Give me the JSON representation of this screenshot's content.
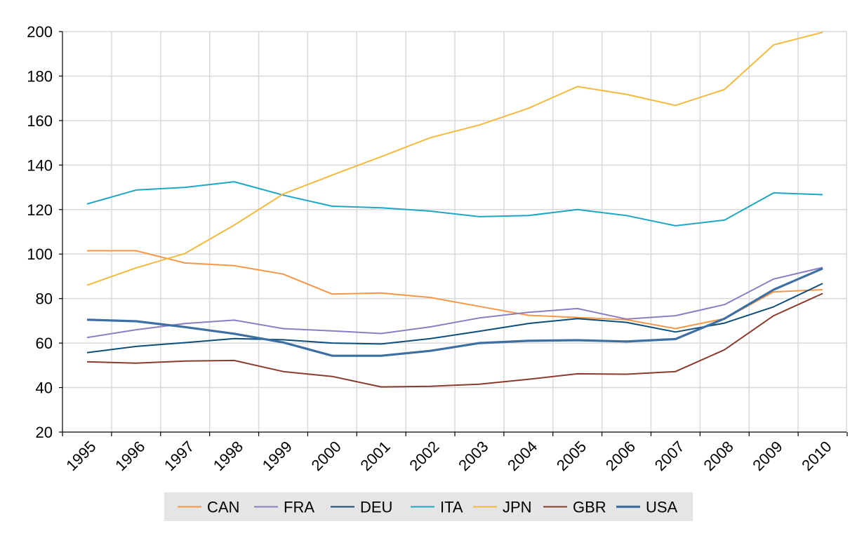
{
  "chart_data": {
    "type": "line",
    "title": "",
    "xlabel": "",
    "ylabel": "",
    "x": [
      "1995",
      "1996",
      "1997",
      "1998",
      "1999",
      "2000",
      "2001",
      "2002",
      "2003",
      "2004",
      "2005",
      "2006",
      "2007",
      "2008",
      "2009",
      "2010"
    ],
    "ylim": [
      20,
      200
    ],
    "yticks": [
      20,
      40,
      60,
      80,
      100,
      120,
      140,
      160,
      180,
      200
    ],
    "grid": true,
    "legend_position": "bottom",
    "series": [
      {
        "name": "CAN",
        "color": "#F79646",
        "values": [
          101.5,
          101.5,
          96.0,
          94.8,
          91.0,
          82.0,
          82.5,
          80.5,
          76.5,
          72.5,
          71.5,
          70.5,
          66.5,
          71.0,
          83.0,
          84.0
        ]
      },
      {
        "name": "FRA",
        "color": "#8E7CC3",
        "values": [
          62.5,
          66.0,
          68.8,
          70.3,
          66.5,
          65.5,
          64.3,
          67.3,
          71.3,
          73.8,
          75.5,
          70.8,
          72.3,
          77.3,
          88.8,
          94.0
        ]
      },
      {
        "name": "DEU",
        "color": "#0E4D7A",
        "values": [
          55.7,
          58.5,
          60.2,
          62.0,
          61.5,
          60.0,
          59.6,
          62.0,
          65.3,
          68.8,
          71.0,
          69.3,
          65.0,
          69.0,
          76.3,
          86.8
        ]
      },
      {
        "name": "ITA",
        "color": "#1CA7C4",
        "values": [
          122.5,
          128.8,
          130.0,
          132.5,
          126.5,
          121.5,
          120.8,
          119.3,
          116.8,
          117.3,
          120.0,
          117.3,
          112.7,
          115.3,
          127.5,
          126.7
        ]
      },
      {
        "name": "JPN",
        "color": "#F6B93B",
        "values": [
          86.0,
          93.8,
          100.3,
          113.0,
          127.0,
          135.5,
          143.8,
          152.3,
          158.0,
          165.5,
          175.3,
          171.8,
          166.8,
          174.0,
          194.0,
          199.7
        ]
      },
      {
        "name": "GBR",
        "color": "#8B3A2B",
        "values": [
          51.6,
          51.0,
          51.9,
          52.2,
          47.2,
          45.0,
          40.3,
          40.6,
          41.5,
          43.7,
          46.2,
          46.0,
          47.2,
          57.0,
          72.3,
          82.3
        ]
      },
      {
        "name": "USA",
        "color": "#3E6FA3",
        "values": [
          70.5,
          69.8,
          67.2,
          64.2,
          60.3,
          54.3,
          54.3,
          56.5,
          60.0,
          61.0,
          61.3,
          60.7,
          61.8,
          71.0,
          84.0,
          93.5
        ]
      }
    ]
  },
  "legend": {
    "background": "#E5E5E5"
  }
}
